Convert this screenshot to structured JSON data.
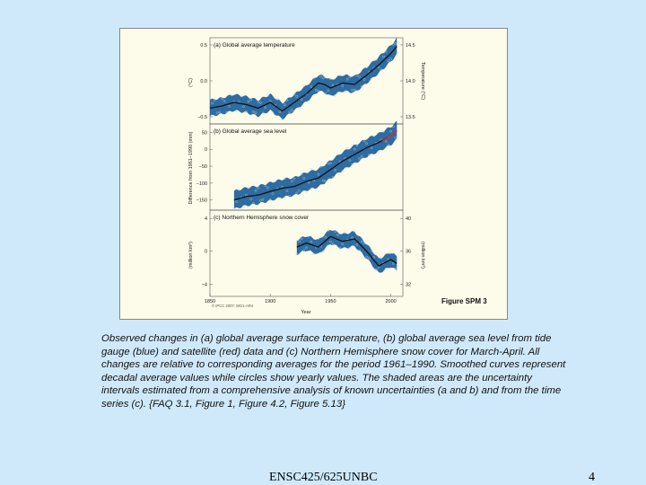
{
  "slide": {
    "caption": "Observed changes in (a) global average surface temperature, (b) global average sea level from tide gauge (blue) and satellite (red) data and (c) Northern Hemisphere snow cover for March-April. All changes are relative to corresponding averages for the period 1961–1990. Smoothed curves represent decadal average values while circles show yearly values. The shaded areas are the uncertainty intervals estimated from a comprehensive analysis of known uncertainties (a and b) and from the time series (c). {FAQ 3.1, Figure 1, Figure 4.2, Figure 5.13}",
    "footer": "ENSC425/625UNBC",
    "page_number": "4"
  },
  "figure": {
    "label": "Figure SPM 3",
    "credit": "© IPCC 2007: WG1-AR4",
    "x_axis_label": "Year",
    "x_ticks": [
      "1850",
      "1900",
      "1950",
      "2000"
    ]
  },
  "chart_data": [
    {
      "type": "line",
      "title": "(a) Global average temperature",
      "ylabel": "(°C)",
      "ylabel_right": "Temperature (°C)",
      "yticks": [
        "0.5",
        "0.0",
        "−0.5"
      ],
      "yticks_right": [
        "14.5",
        "14.0",
        "13.5"
      ],
      "xlim": [
        1850,
        2010
      ],
      "ylim": [
        -0.6,
        0.6
      ],
      "band_color": "#1c5f9a",
      "line_color": "#111111",
      "series": [
        {
          "x": [
            1850,
            1860,
            1870,
            1880,
            1890,
            1900,
            1910,
            1920,
            1930,
            1940,
            1945,
            1950,
            1960,
            1970,
            1980,
            1990,
            2000,
            2005
          ],
          "values": [
            -0.38,
            -0.35,
            -0.3,
            -0.33,
            -0.38,
            -0.3,
            -0.42,
            -0.3,
            -0.18,
            -0.03,
            -0.05,
            -0.1,
            -0.03,
            -0.05,
            0.08,
            0.22,
            0.38,
            0.48
          ]
        }
      ]
    },
    {
      "type": "line",
      "title": "(b) Global average sea level",
      "ylabel": "Difference from 1961–1990 (mm)",
      "yticks": [
        "50",
        "0",
        "−50",
        "−100",
        "−150"
      ],
      "xlim": [
        1850,
        2010
      ],
      "ylim": [
        -180,
        75
      ],
      "band_color": "#1c5f9a",
      "line_color": "#111111",
      "satellite_color": "#cc3333",
      "series": [
        {
          "x": [
            1870,
            1880,
            1890,
            1900,
            1910,
            1920,
            1930,
            1940,
            1950,
            1960,
            1970,
            1980,
            1990,
            2000,
            2005
          ],
          "values": [
            -150,
            -140,
            -135,
            -125,
            -115,
            -110,
            -95,
            -85,
            -60,
            -35,
            -15,
            5,
            20,
            40,
            55
          ]
        }
      ]
    },
    {
      "type": "line",
      "title": "(c) Northern Hemisphere snow cover",
      "ylabel": "(million km²)",
      "ylabel_right": "(million km²)",
      "yticks": [
        "4",
        "0",
        "−4"
      ],
      "yticks_right": [
        "40",
        "36",
        "32"
      ],
      "xlim": [
        1850,
        2010
      ],
      "ylim": [
        -5.5,
        5
      ],
      "band_color": "#1c5f9a",
      "line_color": "#111111",
      "series": [
        {
          "x": [
            1922,
            1930,
            1940,
            1950,
            1960,
            1970,
            1980,
            1990,
            2000,
            2005
          ],
          "values": [
            0.5,
            1.0,
            0.5,
            1.8,
            1.2,
            1.5,
            0.0,
            -1.8,
            -1.0,
            -1.5
          ]
        }
      ]
    }
  ]
}
